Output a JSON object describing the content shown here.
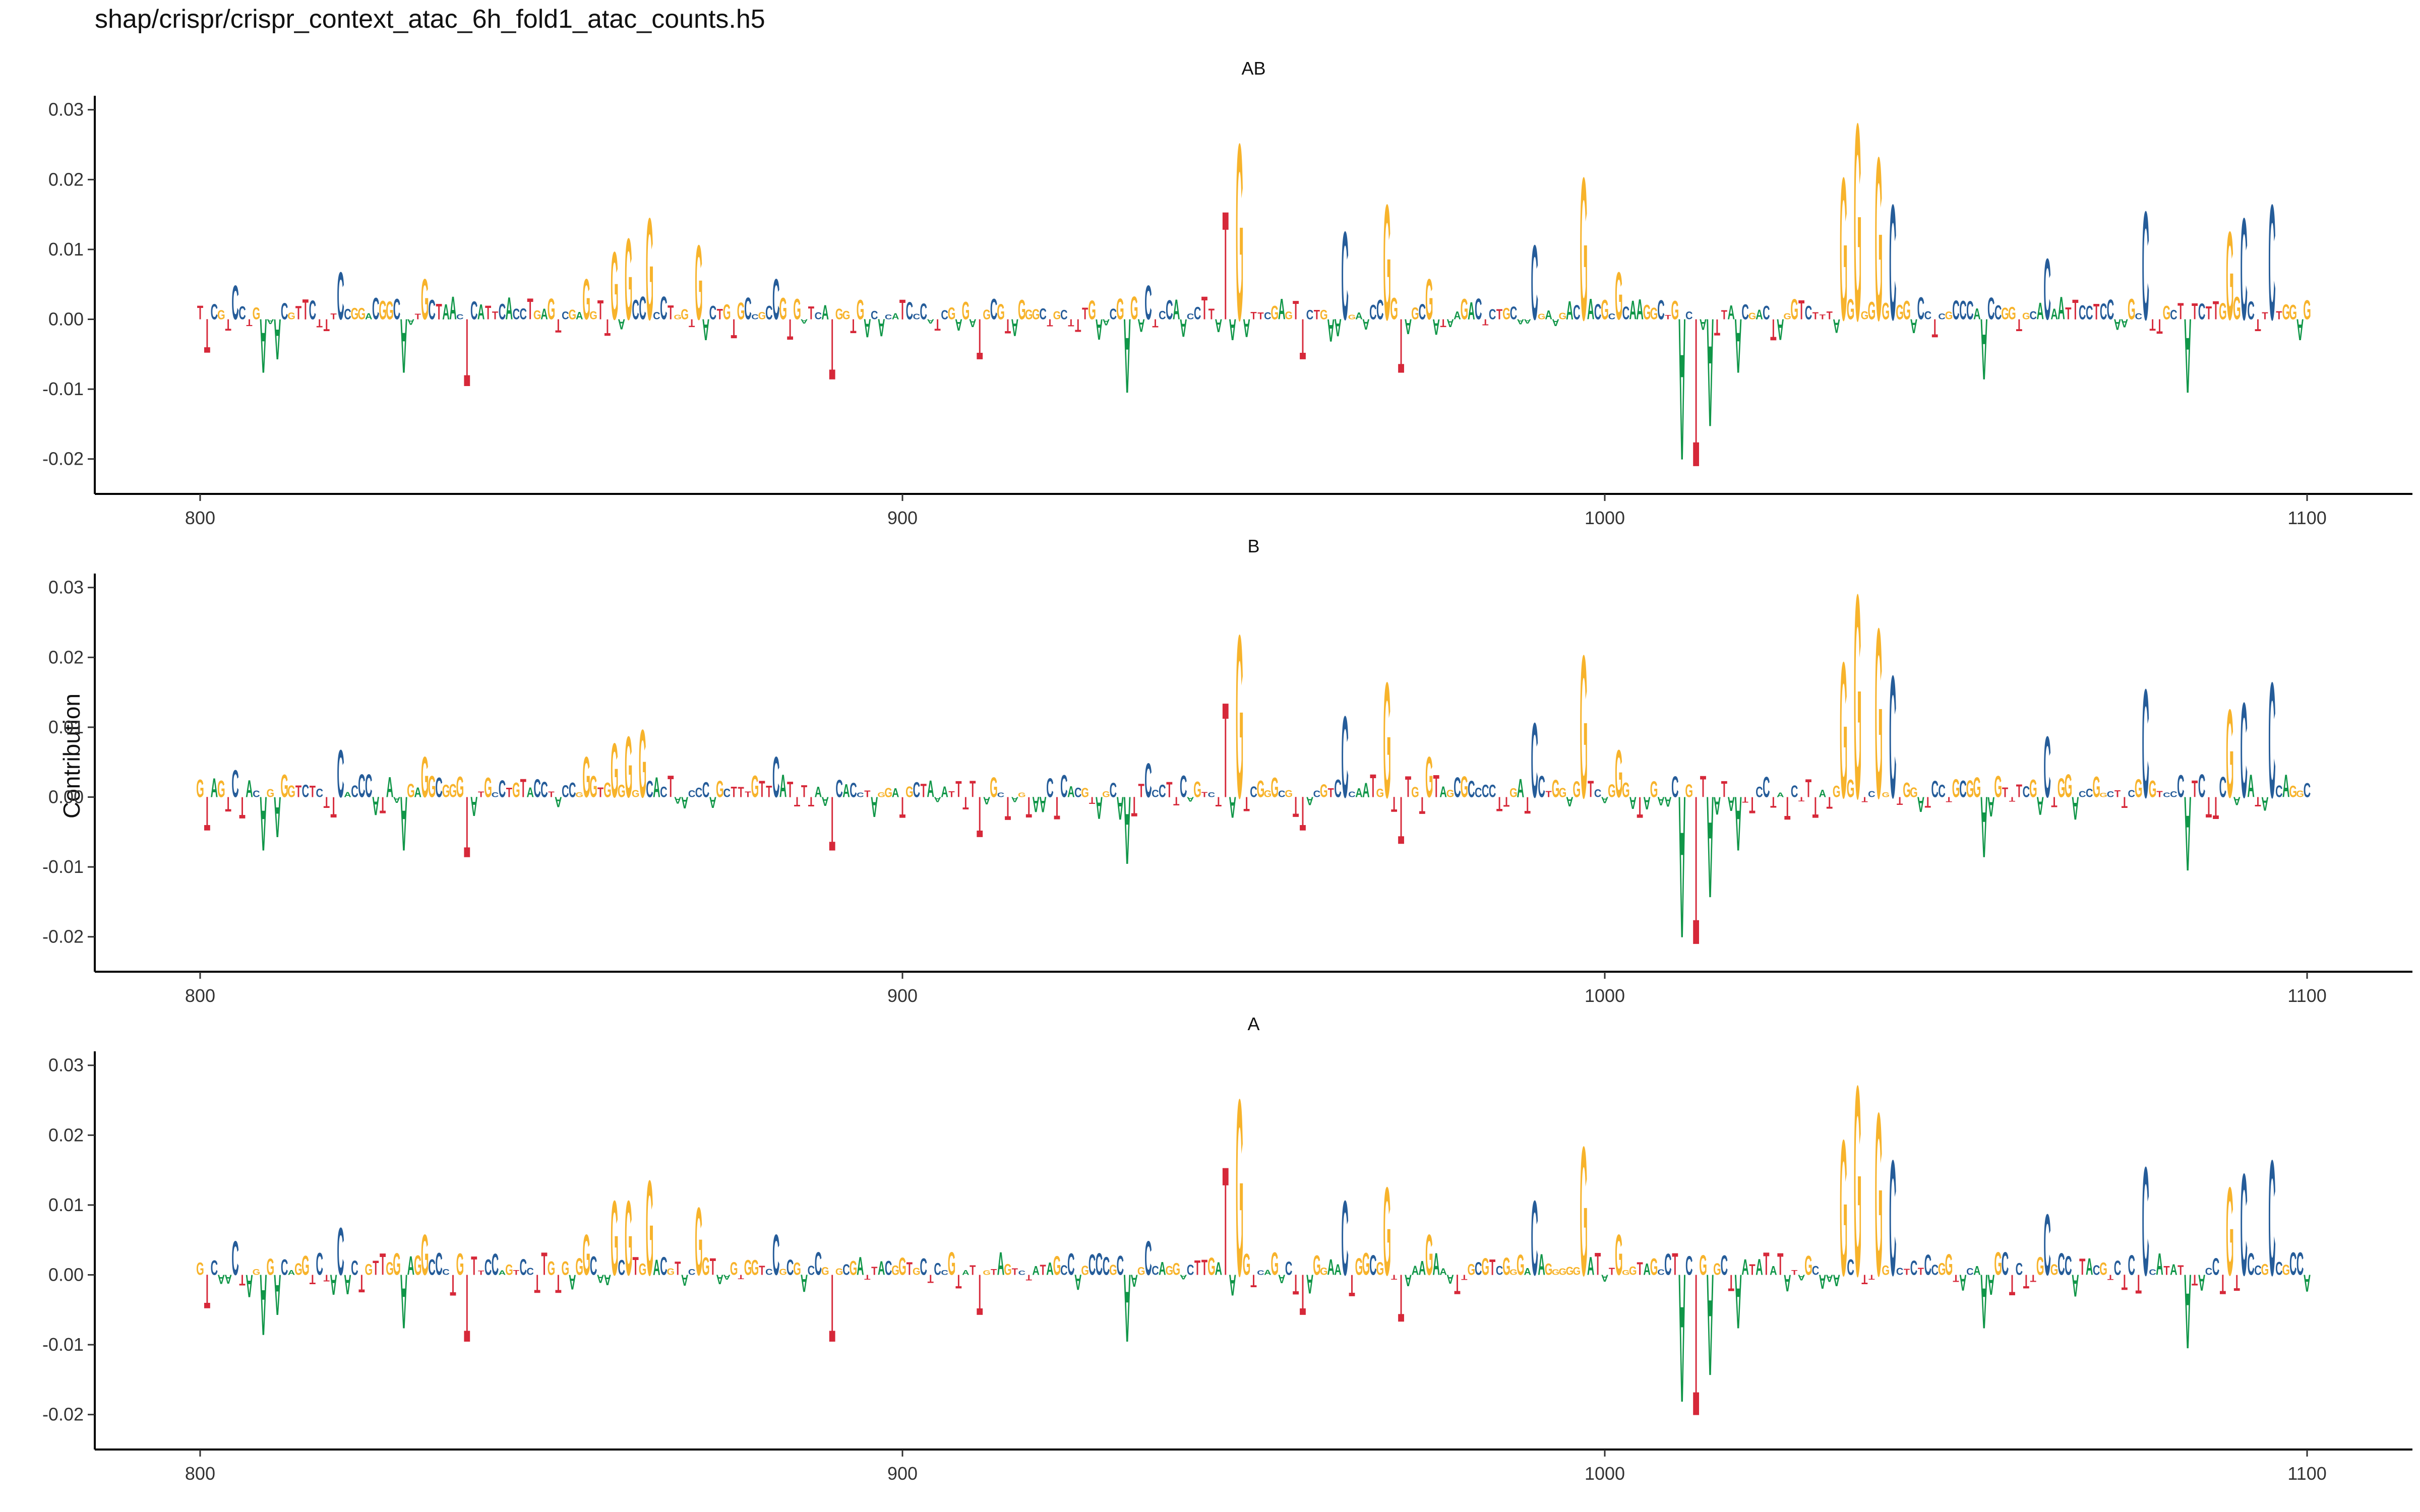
{
  "figure": {
    "title": "shap/crispr/crispr_context_atac_6h_fold1_atac_counts.h5",
    "ylabel": "Contribution"
  },
  "colors": {
    "A": "#109648",
    "C": "#255c99",
    "G": "#f7b32b",
    "T": "#d62839"
  },
  "chart_data": [
    {
      "type": "area",
      "title": "AB",
      "xlim": [
        785,
        1115
      ],
      "ylim": [
        -0.025,
        0.032
      ],
      "xticks": [
        800,
        900,
        1000,
        1100
      ],
      "yticks": [
        0.03,
        0.02,
        0.01,
        0.0,
        -0.01,
        -0.02
      ],
      "ytick_labels": [
        "0.03",
        "0.02",
        "0.01",
        "0.00",
        "-0.01",
        "-0.02"
      ],
      "peaks": [
        {
          "x": 801,
          "base": "T",
          "value": -0.005
        },
        {
          "x": 805,
          "base": "C",
          "value": 0.005
        },
        {
          "x": 809,
          "base": "A",
          "value": -0.008
        },
        {
          "x": 811,
          "base": "A",
          "value": -0.006
        },
        {
          "x": 820,
          "base": "C",
          "value": 0.007
        },
        {
          "x": 829,
          "base": "A",
          "value": -0.008
        },
        {
          "x": 832,
          "base": "G",
          "value": 0.006
        },
        {
          "x": 838,
          "base": "T",
          "value": -0.01
        },
        {
          "x": 855,
          "base": "G",
          "value": 0.006
        },
        {
          "x": 859,
          "base": "G",
          "value": 0.01
        },
        {
          "x": 861,
          "base": "G",
          "value": 0.012
        },
        {
          "x": 864,
          "base": "G",
          "value": 0.015
        },
        {
          "x": 871,
          "base": "G",
          "value": 0.011
        },
        {
          "x": 882,
          "base": "C",
          "value": 0.006
        },
        {
          "x": 890,
          "base": "T",
          "value": -0.009
        },
        {
          "x": 911,
          "base": "T",
          "value": -0.006
        },
        {
          "x": 932,
          "base": "A",
          "value": -0.011
        },
        {
          "x": 935,
          "base": "C",
          "value": 0.005
        },
        {
          "x": 946,
          "base": "T",
          "value": 0.016
        },
        {
          "x": 948,
          "base": "G",
          "value": 0.026
        },
        {
          "x": 957,
          "base": "T",
          "value": -0.006
        },
        {
          "x": 963,
          "base": "C",
          "value": 0.013
        },
        {
          "x": 969,
          "base": "G",
          "value": 0.017
        },
        {
          "x": 971,
          "base": "T",
          "value": -0.008
        },
        {
          "x": 975,
          "base": "G",
          "value": 0.006
        },
        {
          "x": 990,
          "base": "C",
          "value": 0.011
        },
        {
          "x": 997,
          "base": "G",
          "value": 0.021
        },
        {
          "x": 1002,
          "base": "G",
          "value": 0.007
        },
        {
          "x": 1011,
          "base": "A",
          "value": -0.021
        },
        {
          "x": 1013,
          "base": "T",
          "value": -0.022
        },
        {
          "x": 1015,
          "base": "A",
          "value": -0.016
        },
        {
          "x": 1019,
          "base": "A",
          "value": -0.008
        },
        {
          "x": 1034,
          "base": "G",
          "value": 0.021
        },
        {
          "x": 1036,
          "base": "G",
          "value": 0.029
        },
        {
          "x": 1039,
          "base": "G",
          "value": 0.024
        },
        {
          "x": 1041,
          "base": "C",
          "value": 0.017
        },
        {
          "x": 1054,
          "base": "A",
          "value": -0.009
        },
        {
          "x": 1063,
          "base": "C",
          "value": 0.009
        },
        {
          "x": 1077,
          "base": "C",
          "value": 0.016
        },
        {
          "x": 1083,
          "base": "A",
          "value": -0.011
        },
        {
          "x": 1089,
          "base": "G",
          "value": 0.013
        },
        {
          "x": 1091,
          "base": "C",
          "value": 0.015
        },
        {
          "x": 1095,
          "base": "C",
          "value": 0.017
        }
      ]
    },
    {
      "type": "area",
      "title": "B",
      "xlim": [
        785,
        1115
      ],
      "ylim": [
        -0.025,
        0.032
      ],
      "xticks": [
        800,
        900,
        1000,
        1100
      ],
      "yticks": [
        0.03,
        0.02,
        0.01,
        0.0,
        -0.01,
        -0.02
      ],
      "ytick_labels": [
        "0.03",
        "0.02",
        "0.01",
        "0.00",
        "-0.01",
        "-0.02"
      ],
      "peaks": [
        {
          "x": 801,
          "base": "T",
          "value": -0.005
        },
        {
          "x": 805,
          "base": "C",
          "value": 0.004
        },
        {
          "x": 809,
          "base": "A",
          "value": -0.008
        },
        {
          "x": 811,
          "base": "A",
          "value": -0.006
        },
        {
          "x": 820,
          "base": "C",
          "value": 0.007
        },
        {
          "x": 829,
          "base": "A",
          "value": -0.008
        },
        {
          "x": 832,
          "base": "G",
          "value": 0.006
        },
        {
          "x": 838,
          "base": "T",
          "value": -0.009
        },
        {
          "x": 855,
          "base": "G",
          "value": 0.006
        },
        {
          "x": 859,
          "base": "G",
          "value": 0.008
        },
        {
          "x": 861,
          "base": "G",
          "value": 0.009
        },
        {
          "x": 863,
          "base": "G",
          "value": 0.01
        },
        {
          "x": 882,
          "base": "C",
          "value": 0.006
        },
        {
          "x": 890,
          "base": "T",
          "value": -0.008
        },
        {
          "x": 911,
          "base": "T",
          "value": -0.006
        },
        {
          "x": 932,
          "base": "A",
          "value": -0.01
        },
        {
          "x": 935,
          "base": "C",
          "value": 0.005
        },
        {
          "x": 946,
          "base": "T",
          "value": 0.014
        },
        {
          "x": 948,
          "base": "G",
          "value": 0.024
        },
        {
          "x": 957,
          "base": "T",
          "value": -0.005
        },
        {
          "x": 963,
          "base": "C",
          "value": 0.012
        },
        {
          "x": 969,
          "base": "G",
          "value": 0.017
        },
        {
          "x": 971,
          "base": "T",
          "value": -0.007
        },
        {
          "x": 975,
          "base": "G",
          "value": 0.006
        },
        {
          "x": 990,
          "base": "C",
          "value": 0.011
        },
        {
          "x": 997,
          "base": "G",
          "value": 0.021
        },
        {
          "x": 1002,
          "base": "G",
          "value": 0.007
        },
        {
          "x": 1011,
          "base": "A",
          "value": -0.021
        },
        {
          "x": 1013,
          "base": "T",
          "value": -0.022
        },
        {
          "x": 1015,
          "base": "A",
          "value": -0.015
        },
        {
          "x": 1019,
          "base": "A",
          "value": -0.008
        },
        {
          "x": 1034,
          "base": "G",
          "value": 0.02
        },
        {
          "x": 1036,
          "base": "G",
          "value": 0.03
        },
        {
          "x": 1039,
          "base": "G",
          "value": 0.025
        },
        {
          "x": 1041,
          "base": "C",
          "value": 0.018
        },
        {
          "x": 1054,
          "base": "A",
          "value": -0.009
        },
        {
          "x": 1063,
          "base": "C",
          "value": 0.009
        },
        {
          "x": 1077,
          "base": "C",
          "value": 0.016
        },
        {
          "x": 1083,
          "base": "A",
          "value": -0.011
        },
        {
          "x": 1089,
          "base": "G",
          "value": 0.013
        },
        {
          "x": 1091,
          "base": "C",
          "value": 0.014
        },
        {
          "x": 1095,
          "base": "C",
          "value": 0.017
        }
      ]
    },
    {
      "type": "area",
      "title": "A",
      "xlim": [
        785,
        1115
      ],
      "ylim": [
        -0.025,
        0.032
      ],
      "xticks": [
        800,
        900,
        1000,
        1100
      ],
      "yticks": [
        0.03,
        0.02,
        0.01,
        0.0,
        -0.01,
        -0.02
      ],
      "ytick_labels": [
        "0.03",
        "0.02",
        "0.01",
        "0.00",
        "-0.01",
        "-0.02"
      ],
      "peaks": [
        {
          "x": 801,
          "base": "T",
          "value": -0.005
        },
        {
          "x": 805,
          "base": "C",
          "value": 0.005
        },
        {
          "x": 809,
          "base": "A",
          "value": -0.009
        },
        {
          "x": 811,
          "base": "A",
          "value": -0.006
        },
        {
          "x": 820,
          "base": "C",
          "value": 0.007
        },
        {
          "x": 829,
          "base": "A",
          "value": -0.008
        },
        {
          "x": 832,
          "base": "G",
          "value": 0.006
        },
        {
          "x": 838,
          "base": "T",
          "value": -0.01
        },
        {
          "x": 855,
          "base": "G",
          "value": 0.006
        },
        {
          "x": 859,
          "base": "G",
          "value": 0.011
        },
        {
          "x": 861,
          "base": "G",
          "value": 0.011
        },
        {
          "x": 864,
          "base": "G",
          "value": 0.014
        },
        {
          "x": 871,
          "base": "G",
          "value": 0.01
        },
        {
          "x": 882,
          "base": "C",
          "value": 0.006
        },
        {
          "x": 890,
          "base": "T",
          "value": -0.01
        },
        {
          "x": 911,
          "base": "T",
          "value": -0.006
        },
        {
          "x": 932,
          "base": "A",
          "value": -0.01
        },
        {
          "x": 935,
          "base": "C",
          "value": 0.005
        },
        {
          "x": 946,
          "base": "T",
          "value": 0.016
        },
        {
          "x": 948,
          "base": "G",
          "value": 0.026
        },
        {
          "x": 957,
          "base": "T",
          "value": -0.006
        },
        {
          "x": 963,
          "base": "C",
          "value": 0.011
        },
        {
          "x": 969,
          "base": "G",
          "value": 0.013
        },
        {
          "x": 971,
          "base": "T",
          "value": -0.007
        },
        {
          "x": 975,
          "base": "G",
          "value": 0.006
        },
        {
          "x": 990,
          "base": "C",
          "value": 0.011
        },
        {
          "x": 997,
          "base": "G",
          "value": 0.019
        },
        {
          "x": 1002,
          "base": "G",
          "value": 0.006
        },
        {
          "x": 1011,
          "base": "A",
          "value": -0.019
        },
        {
          "x": 1013,
          "base": "T",
          "value": -0.021
        },
        {
          "x": 1015,
          "base": "A",
          "value": -0.015
        },
        {
          "x": 1019,
          "base": "A",
          "value": -0.008
        },
        {
          "x": 1034,
          "base": "G",
          "value": 0.02
        },
        {
          "x": 1036,
          "base": "G",
          "value": 0.028
        },
        {
          "x": 1039,
          "base": "G",
          "value": 0.024
        },
        {
          "x": 1041,
          "base": "C",
          "value": 0.017
        },
        {
          "x": 1054,
          "base": "A",
          "value": -0.008
        },
        {
          "x": 1063,
          "base": "C",
          "value": 0.009
        },
        {
          "x": 1077,
          "base": "C",
          "value": 0.016
        },
        {
          "x": 1083,
          "base": "A",
          "value": -0.011
        },
        {
          "x": 1089,
          "base": "G",
          "value": 0.013
        },
        {
          "x": 1091,
          "base": "C",
          "value": 0.015
        },
        {
          "x": 1095,
          "base": "C",
          "value": 0.017
        }
      ]
    }
  ]
}
